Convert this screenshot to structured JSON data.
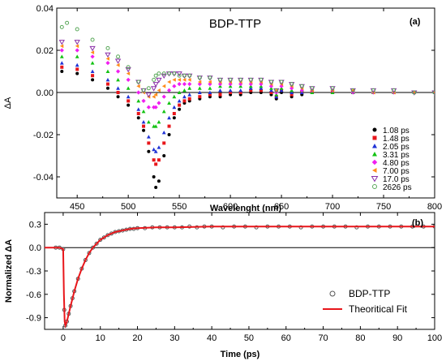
{
  "chart_data": [
    {
      "type": "scatter",
      "title": "BDP-TTP",
      "panel_label": "(a)",
      "xlabel": "Wavelenght (nm)",
      "ylabel": "ΔA",
      "xlim": [
        430,
        800
      ],
      "ylim": [
        -0.05,
        0.04
      ],
      "x_ticks": [
        450,
        500,
        550,
        600,
        650,
        700,
        750,
        800
      ],
      "y_ticks": [
        -0.04,
        -0.02,
        0.0,
        0.02,
        0.04
      ],
      "y_tick_labels": [
        "-0.04",
        "-0.02",
        "0.00",
        "0.02",
        "0.04"
      ],
      "zero_line": true,
      "grid": false,
      "legend_position": "right",
      "series": [
        {
          "name": "1.08 ps",
          "color": "#000000",
          "marker": "circle",
          "x": [
            435,
            450,
            465,
            480,
            490,
            500,
            510,
            515,
            520,
            525,
            527,
            530,
            535,
            540,
            545,
            550,
            555,
            560,
            570,
            580,
            590,
            600,
            610,
            620,
            630,
            640,
            645,
            650,
            660,
            670,
            680,
            700,
            720,
            740,
            760,
            780,
            800
          ],
          "y": [
            0.01,
            0.009,
            0.006,
            0.002,
            -0.002,
            -0.006,
            -0.012,
            -0.018,
            -0.028,
            -0.04,
            -0.045,
            -0.042,
            -0.03,
            -0.02,
            -0.012,
            -0.008,
            -0.005,
            -0.004,
            -0.003,
            -0.002,
            -0.002,
            -0.001,
            -0.001,
            0.0,
            0.0,
            -0.001,
            -0.003,
            0.0,
            -0.002,
            -0.001,
            0.0,
            0.0,
            0.0,
            0.0,
            0.0,
            0.0,
            0.0
          ]
        },
        {
          "name": "1.48 ps",
          "color": "#e8161b",
          "marker": "square",
          "x": [
            435,
            450,
            465,
            480,
            490,
            500,
            510,
            515,
            520,
            525,
            527,
            530,
            535,
            540,
            545,
            550,
            555,
            560,
            570,
            580,
            590,
            600,
            610,
            620,
            630,
            640,
            645,
            650,
            660,
            670,
            680,
            700,
            720,
            740,
            760,
            780,
            800
          ],
          "y": [
            0.012,
            0.011,
            0.008,
            0.004,
            0.0,
            -0.004,
            -0.01,
            -0.016,
            -0.024,
            -0.032,
            -0.034,
            -0.032,
            -0.024,
            -0.016,
            -0.01,
            -0.006,
            -0.004,
            -0.003,
            -0.002,
            -0.001,
            -0.001,
            0.0,
            0.0,
            0.001,
            0.001,
            0.0,
            -0.002,
            0.001,
            -0.001,
            0.0,
            0.0,
            0.0,
            0.0,
            0.0,
            0.0,
            0.0,
            0.0
          ]
        },
        {
          "name": "2.05 ps",
          "color": "#1f32d6",
          "marker": "triangle",
          "x": [
            435,
            450,
            465,
            480,
            490,
            500,
            510,
            515,
            520,
            525,
            527,
            530,
            535,
            540,
            545,
            550,
            555,
            560,
            570,
            580,
            590,
            600,
            610,
            620,
            630,
            640,
            645,
            650,
            660,
            670,
            680,
            700,
            720,
            740,
            760,
            780,
            800
          ],
          "y": [
            0.014,
            0.013,
            0.01,
            0.006,
            0.002,
            -0.002,
            -0.008,
            -0.014,
            -0.021,
            -0.027,
            -0.028,
            -0.026,
            -0.019,
            -0.012,
            -0.007,
            -0.004,
            -0.002,
            -0.001,
            0.0,
            0.0,
            0.001,
            0.001,
            0.001,
            0.002,
            0.002,
            0.001,
            -0.002,
            0.001,
            0.0,
            0.0,
            0.0,
            0.0,
            0.0,
            0.0,
            0.0,
            0.0,
            0.0
          ]
        },
        {
          "name": "3.31 ps",
          "color": "#12c212",
          "marker": "triangle",
          "x": [
            435,
            450,
            465,
            480,
            490,
            500,
            510,
            515,
            520,
            525,
            527,
            530,
            535,
            540,
            545,
            550,
            555,
            560,
            570,
            580,
            590,
            600,
            610,
            620,
            630,
            640,
            645,
            650,
            660,
            670,
            680,
            700,
            720,
            740,
            760,
            780,
            800
          ],
          "y": [
            0.017,
            0.017,
            0.014,
            0.01,
            0.006,
            0.002,
            -0.004,
            -0.009,
            -0.014,
            -0.016,
            -0.016,
            -0.014,
            -0.009,
            -0.005,
            -0.002,
            0.0,
            0.001,
            0.002,
            0.002,
            0.002,
            0.003,
            0.003,
            0.003,
            0.003,
            0.003,
            0.002,
            -0.001,
            0.002,
            0.001,
            0.001,
            0.0,
            0.0,
            0.0,
            0.0,
            0.0,
            0.0,
            0.0
          ]
        },
        {
          "name": "4.80 ps",
          "color": "#f01ef0",
          "marker": "diamond",
          "x": [
            435,
            450,
            465,
            480,
            490,
            500,
            510,
            515,
            520,
            525,
            527,
            530,
            535,
            540,
            545,
            550,
            555,
            560,
            570,
            580,
            590,
            600,
            610,
            620,
            630,
            640,
            645,
            650,
            660,
            670,
            680,
            700,
            720,
            740,
            760,
            780,
            800
          ],
          "y": [
            0.02,
            0.02,
            0.017,
            0.014,
            0.01,
            0.006,
            0.0,
            -0.004,
            -0.007,
            -0.007,
            -0.007,
            -0.005,
            -0.002,
            0.001,
            0.003,
            0.004,
            0.004,
            0.004,
            0.004,
            0.004,
            0.004,
            0.004,
            0.004,
            0.004,
            0.004,
            0.003,
            0.0,
            0.003,
            0.002,
            0.001,
            0.001,
            0.001,
            0.0,
            0.0,
            0.0,
            0.0,
            0.0
          ]
        },
        {
          "name": "7.00 ps",
          "color": "#ff8c1a",
          "marker": "triangle-left",
          "x": [
            435,
            450,
            465,
            480,
            490,
            500,
            510,
            515,
            520,
            525,
            527,
            530,
            535,
            540,
            545,
            550,
            555,
            560,
            570,
            580,
            590,
            600,
            610,
            620,
            630,
            640,
            645,
            650,
            660,
            670,
            680,
            700,
            720,
            740,
            760,
            780,
            800
          ],
          "y": [
            0.022,
            0.022,
            0.019,
            0.016,
            0.013,
            0.009,
            0.003,
            0.0,
            -0.002,
            -0.002,
            -0.001,
            0.001,
            0.003,
            0.005,
            0.006,
            0.006,
            0.006,
            0.006,
            0.005,
            0.005,
            0.005,
            0.005,
            0.005,
            0.005,
            0.005,
            0.004,
            0.001,
            0.004,
            0.003,
            0.002,
            0.001,
            0.001,
            0.001,
            0.0,
            0.0,
            0.0,
            0.0
          ]
        },
        {
          "name": "17.0 ps",
          "color": "#8a2fa8",
          "marker": "triangle-down-open",
          "x": [
            435,
            450,
            465,
            480,
            490,
            500,
            510,
            515,
            520,
            525,
            527,
            530,
            535,
            540,
            545,
            550,
            555,
            560,
            570,
            580,
            590,
            600,
            610,
            620,
            630,
            640,
            645,
            650,
            660,
            670,
            680,
            700,
            720,
            740,
            760,
            780,
            800
          ],
          "y": [
            0.024,
            0.024,
            0.021,
            0.018,
            0.015,
            0.011,
            0.005,
            0.001,
            -0.001,
            0.002,
            0.004,
            0.006,
            0.008,
            0.009,
            0.009,
            0.009,
            0.008,
            0.008,
            0.007,
            0.007,
            0.006,
            0.006,
            0.006,
            0.006,
            0.006,
            0.005,
            0.001,
            0.005,
            0.004,
            0.003,
            0.002,
            0.002,
            0.001,
            0.001,
            0.001,
            0.0,
            0.0
          ]
        },
        {
          "name": "2626 ps",
          "color": "#5aa85a",
          "marker": "circle-open",
          "x": [
            435,
            440,
            450,
            465,
            480,
            490,
            500,
            510,
            515,
            520,
            525,
            527,
            530,
            535,
            540,
            545,
            550,
            555,
            560,
            570,
            580,
            590,
            600,
            610,
            620,
            630,
            640,
            645,
            650,
            660,
            670,
            680,
            700,
            720,
            740,
            760,
            780,
            800
          ],
          "y": [
            0.031,
            0.033,
            0.03,
            0.025,
            0.021,
            0.017,
            0.012,
            0.005,
            0.001,
            0.002,
            0.006,
            0.008,
            0.009,
            0.009,
            0.009,
            0.009,
            0.008,
            0.008,
            0.008,
            0.007,
            0.007,
            0.006,
            0.006,
            0.006,
            0.006,
            0.006,
            0.005,
            0.001,
            0.005,
            0.004,
            0.003,
            0.002,
            0.002,
            0.001,
            0.001,
            0.001,
            0.0,
            0.0
          ]
        }
      ]
    },
    {
      "type": "scatter",
      "panel_label": "(b)",
      "xlabel": "Time (ps)",
      "ylabel": "Normalized ΔA",
      "xlim": [
        -5,
        100
      ],
      "ylim": [
        -1.05,
        0.45
      ],
      "x_ticks": [
        0,
        10,
        20,
        30,
        40,
        50,
        60,
        70,
        80,
        90,
        100
      ],
      "y_ticks": [
        -0.9,
        -0.6,
        -0.3,
        0.0,
        0.3
      ],
      "y_tick_labels": [
        "-0.9",
        "-0.6",
        "-0.3",
        "0.0",
        "0.3"
      ],
      "zero_line": true,
      "grid": false,
      "legend_position": "bottom-right",
      "series": [
        {
          "name": "BDP-TTP",
          "color": "#555555",
          "marker": "circle-open",
          "x": [
            -2,
            -1,
            0,
            0.3,
            0.6,
            1,
            1.5,
            2,
            2.5,
            3,
            4,
            5,
            6,
            7,
            8,
            9,
            10,
            11,
            12,
            13,
            14,
            15,
            16,
            17,
            18,
            19,
            20,
            22,
            24,
            26,
            28,
            30,
            32,
            34,
            36,
            38,
            40,
            43,
            46,
            49,
            52,
            55,
            58,
            61,
            64,
            67,
            70,
            73,
            76,
            79,
            82,
            85,
            88,
            91,
            94,
            97,
            100
          ],
          "y": [
            0.0,
            0.0,
            -0.02,
            -0.8,
            -1.0,
            -0.95,
            -0.85,
            -0.75,
            -0.65,
            -0.56,
            -0.4,
            -0.27,
            -0.16,
            -0.07,
            0.0,
            0.05,
            0.1,
            0.13,
            0.16,
            0.18,
            0.2,
            0.21,
            0.22,
            0.23,
            0.24,
            0.24,
            0.25,
            0.25,
            0.26,
            0.26,
            0.26,
            0.26,
            0.26,
            0.27,
            0.26,
            0.27,
            0.27,
            0.26,
            0.27,
            0.27,
            0.26,
            0.27,
            0.27,
            0.27,
            0.26,
            0.27,
            0.27,
            0.27,
            0.27,
            0.26,
            0.27,
            0.27,
            0.27,
            0.27,
            0.27,
            0.27,
            0.27
          ]
        },
        {
          "name": "Theoritical Fit",
          "color": "#e8161b",
          "marker": "line",
          "x": [
            -5,
            -1,
            0,
            0.2,
            0.4,
            0.6,
            1,
            1.5,
            2,
            3,
            4,
            5,
            6,
            7,
            8,
            9,
            10,
            12,
            14,
            16,
            18,
            20,
            25,
            30,
            40,
            50,
            60,
            70,
            80,
            90,
            100
          ],
          "y": [
            0.0,
            0.0,
            -0.02,
            -0.6,
            -0.95,
            -1.0,
            -0.95,
            -0.85,
            -0.75,
            -0.56,
            -0.4,
            -0.27,
            -0.16,
            -0.07,
            0.0,
            0.05,
            0.1,
            0.16,
            0.2,
            0.22,
            0.24,
            0.25,
            0.26,
            0.26,
            0.27,
            0.27,
            0.27,
            0.27,
            0.27,
            0.27,
            0.27
          ]
        }
      ]
    }
  ]
}
